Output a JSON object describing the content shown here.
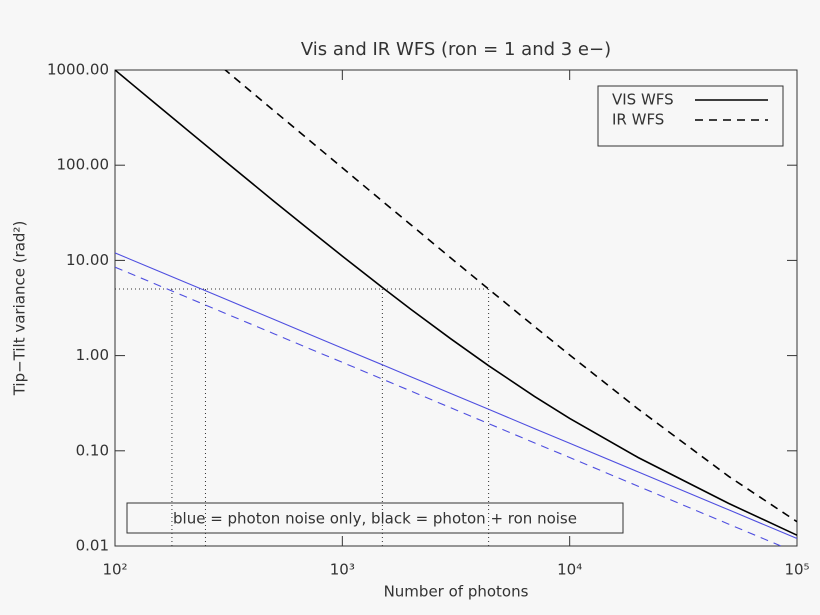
{
  "chart_data": {
    "type": "line",
    "title": "Vis and IR WFS (ron = 1 and 3 e−)",
    "x_label": "Number of photons",
    "y_label": "Tip−Tilt variance (rad²)",
    "annotation": "blue = photon noise only, black = photon + ron noise",
    "x": [
      100,
      150,
      200,
      300,
      500,
      700,
      1000,
      1500,
      2000,
      3000,
      4400,
      7000,
      10000,
      20000,
      50000,
      100000
    ],
    "series": [
      {
        "name": "VIS WFS",
        "color": "#000000",
        "dashed": false,
        "values": [
          1000,
          447,
          253,
          113.8,
          41.9,
          21.9,
          11.1,
          5.19,
          3.07,
          1.5,
          0.783,
          0.373,
          0.219,
          0.085,
          0.028,
          0.013
        ]
      },
      {
        "name": "IR WFS",
        "color": "#000000",
        "dashed": true,
        "values": [
          null,
          null,
          null,
          1036,
          374,
          191,
          93.9,
          41.9,
          23.7,
          10.6,
          5.0,
          2.02,
          1.015,
          0.275,
          0.054,
          0.018
        ]
      },
      {
        "color": "#4f4fe0",
        "dashed": false,
        "values": [
          12,
          8,
          6,
          4,
          2.4,
          1.71,
          1.2,
          0.8,
          0.6,
          0.4,
          0.273,
          0.171,
          0.12,
          0.06,
          0.024,
          0.012
        ]
      },
      {
        "color": "#4f4fe0",
        "dashed": true,
        "values": [
          8.5,
          5.67,
          4.25,
          2.83,
          1.7,
          1.21,
          0.85,
          0.567,
          0.425,
          0.283,
          0.193,
          0.121,
          0.085,
          0.0425,
          0.017,
          0.0085
        ]
      }
    ],
    "reference_lines": {
      "y": 5,
      "x": [
        178,
        250,
        1500,
        4400
      ]
    },
    "xlog": true,
    "ylog": true,
    "xlim": [
      100,
      100000
    ],
    "ylim": [
      0.01,
      1000
    ],
    "xticks": [
      {
        "value": 100,
        "label": "10²"
      },
      {
        "value": 1000,
        "label": "10³"
      },
      {
        "value": 10000,
        "label": "10⁴"
      },
      {
        "value": 100000,
        "label": "10⁵"
      }
    ],
    "yticks": [
      {
        "value": 1000,
        "label": "1000.00"
      },
      {
        "value": 100,
        "label": "100.00"
      },
      {
        "value": 10,
        "label": "10.00"
      },
      {
        "value": 1,
        "label": "1.00"
      },
      {
        "value": 0.1,
        "label": "0.10"
      },
      {
        "value": 0.01,
        "label": "0.01"
      }
    ],
    "grid": false,
    "legend": "top-right"
  }
}
